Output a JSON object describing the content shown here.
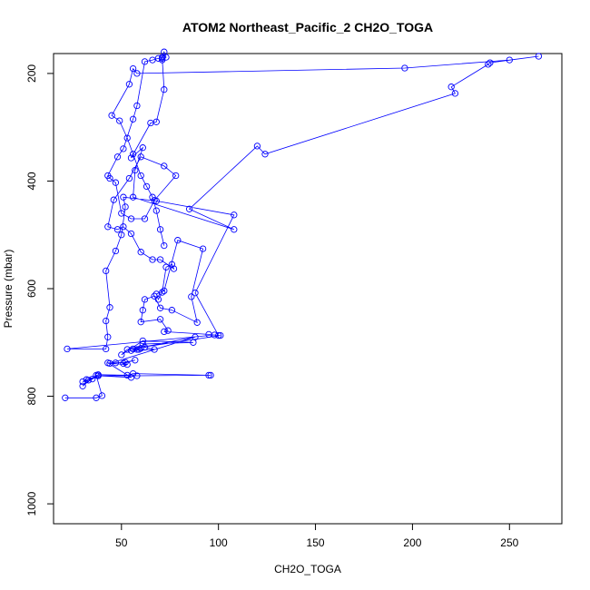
{
  "chart_data": {
    "type": "line",
    "title": "ATOM2 Northeast_Pacific_2 CH2O_TOGA",
    "xlabel": "CH2O_TOGA",
    "ylabel": "Pressure (mbar)",
    "xlim": [
      15,
      277
    ],
    "ylim": [
      1037,
      163
    ],
    "y_inverted": true,
    "grid": false,
    "legend": "none",
    "marker": "open-circle",
    "color": "#0000ff",
    "x_ticks": [
      50,
      100,
      150,
      200,
      250
    ],
    "y_ticks": [
      200,
      400,
      600,
      800,
      1000
    ],
    "x_tick_labels": [
      "50",
      "100",
      "150",
      "200",
      "250"
    ],
    "y_tick_labels": [
      "200",
      "400",
      "600",
      "800",
      "1000"
    ],
    "series": [
      {
        "points": [
          [
            21,
            803
          ],
          [
            37,
            803
          ],
          [
            40,
            799
          ],
          [
            37,
            761
          ],
          [
            30,
            781
          ],
          [
            33,
            770
          ],
          [
            38,
            760
          ],
          [
            53,
            761
          ],
          [
            56,
            758
          ],
          [
            95,
            761
          ],
          [
            96,
            761
          ],
          [
            58,
            762
          ],
          [
            38,
            762
          ],
          [
            35,
            768
          ],
          [
            30,
            773
          ],
          [
            32,
            769
          ],
          [
            38,
            762
          ],
          [
            55,
            765
          ],
          [
            43,
            738
          ],
          [
            47,
            738
          ],
          [
            52,
            737
          ],
          [
            57,
            733
          ],
          [
            51,
            739
          ],
          [
            53,
            741
          ],
          [
            44,
            739
          ],
          [
            88,
            690
          ],
          [
            56,
            712
          ],
          [
            59,
            713
          ],
          [
            58,
            713
          ],
          [
            60,
            711
          ],
          [
            55,
            715
          ],
          [
            67,
            713
          ],
          [
            62,
            709
          ],
          [
            61,
            703
          ],
          [
            87,
            700
          ],
          [
            61,
            697
          ],
          [
            50,
            723
          ],
          [
            53,
            713
          ],
          [
            101,
            687
          ],
          [
            98,
            686
          ],
          [
            22,
            712
          ],
          [
            42,
            712
          ],
          [
            43,
            690
          ],
          [
            42,
            660
          ],
          [
            44,
            635
          ],
          [
            42,
            567
          ],
          [
            47,
            530
          ],
          [
            50,
            500
          ],
          [
            52,
            448
          ],
          [
            51,
            430
          ],
          [
            68,
            437
          ],
          [
            108,
            463
          ],
          [
            88,
            608
          ],
          [
            100,
            687
          ],
          [
            95,
            685
          ],
          [
            72,
            680
          ],
          [
            74,
            678
          ],
          [
            70,
            657
          ],
          [
            60,
            662
          ],
          [
            61,
            640
          ],
          [
            62,
            620
          ],
          [
            67,
            614
          ],
          [
            70,
            636
          ],
          [
            76,
            640
          ],
          [
            89,
            663
          ],
          [
            86,
            615
          ],
          [
            92,
            526
          ],
          [
            79,
            510
          ],
          [
            72,
            604
          ],
          [
            68,
            610
          ],
          [
            69,
            620
          ],
          [
            71,
            607
          ],
          [
            73,
            560
          ],
          [
            76,
            555
          ],
          [
            77,
            563
          ],
          [
            70,
            546
          ],
          [
            66,
            546
          ],
          [
            60,
            532
          ],
          [
            55,
            498
          ],
          [
            51,
            485
          ],
          [
            48,
            490
          ],
          [
            43,
            485
          ],
          [
            46,
            435
          ],
          [
            54,
            395
          ],
          [
            60,
            355
          ],
          [
            72,
            372
          ],
          [
            78,
            390
          ],
          [
            67,
            436
          ],
          [
            62,
            470
          ],
          [
            55,
            470
          ],
          [
            50,
            460
          ],
          [
            47,
            403
          ],
          [
            44,
            395
          ],
          [
            43,
            390
          ],
          [
            48,
            355
          ],
          [
            51,
            340
          ],
          [
            56,
            285
          ],
          [
            58,
            260
          ],
          [
            62,
            178
          ],
          [
            66,
            175
          ],
          [
            69,
            172
          ],
          [
            71,
            175
          ],
          [
            73,
            170
          ],
          [
            72,
            160
          ],
          [
            71,
            170
          ],
          [
            71,
            172
          ],
          [
            72,
            230
          ],
          [
            68,
            290
          ],
          [
            65,
            292
          ],
          [
            55,
            357
          ],
          [
            61,
            338
          ],
          [
            57,
            380
          ],
          [
            56,
            430
          ],
          [
            108,
            490
          ],
          [
            85,
            452
          ],
          [
            120,
            335
          ],
          [
            124,
            350
          ],
          [
            222,
            237
          ],
          [
            220,
            225
          ],
          [
            239,
            183
          ],
          [
            240,
            180
          ],
          [
            265,
            168
          ],
          [
            250,
            175
          ],
          [
            196,
            190
          ],
          [
            58,
            200
          ],
          [
            56,
            191
          ],
          [
            54,
            220
          ],
          [
            45,
            278
          ],
          [
            49,
            288
          ],
          [
            53,
            320
          ],
          [
            56,
            350
          ],
          [
            60,
            390
          ],
          [
            63,
            410
          ],
          [
            66,
            430
          ],
          [
            68,
            455
          ],
          [
            70,
            490
          ],
          [
            72,
            520
          ]
        ]
      }
    ]
  }
}
